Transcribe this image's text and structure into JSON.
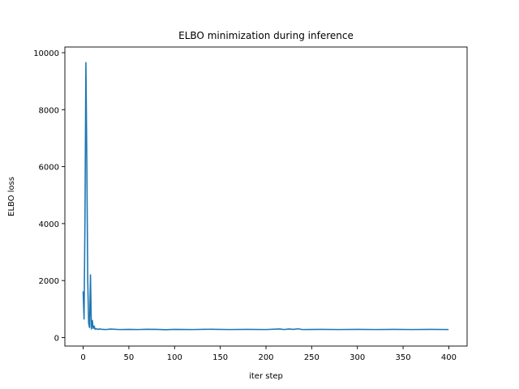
{
  "chart_data": {
    "type": "line",
    "title": "ELBO minimization during inference",
    "xlabel": "iter step",
    "ylabel": "ELBO loss",
    "xlim": [
      -20,
      420
    ],
    "ylim": [
      -300,
      10200
    ],
    "xticks": [
      0,
      50,
      100,
      150,
      200,
      250,
      300,
      350,
      400
    ],
    "yticks": [
      0,
      2000,
      4000,
      6000,
      8000,
      10000
    ],
    "grid": false,
    "legend": "none",
    "series": [
      {
        "color": "#1f77b4",
        "x": [
          0,
          1,
          2,
          3,
          4,
          5,
          6,
          7,
          8,
          9,
          10,
          11,
          12,
          13,
          14,
          15,
          16,
          18,
          20,
          25,
          30,
          40,
          50,
          60,
          70,
          80,
          90,
          100,
          120,
          140,
          160,
          180,
          200,
          215,
          220,
          225,
          230,
          235,
          240,
          260,
          280,
          300,
          320,
          340,
          360,
          380,
          399
        ],
        "y": [
          1600,
          650,
          4200,
          9650,
          6200,
          2000,
          500,
          350,
          2200,
          300,
          600,
          320,
          400,
          290,
          310,
          300,
          285,
          300,
          290,
          280,
          295,
          280,
          285,
          280,
          290,
          285,
          275,
          285,
          280,
          290,
          280,
          285,
          280,
          300,
          280,
          300,
          285,
          305,
          280,
          285,
          280,
          285,
          280,
          285,
          280,
          285,
          280
        ]
      }
    ]
  }
}
